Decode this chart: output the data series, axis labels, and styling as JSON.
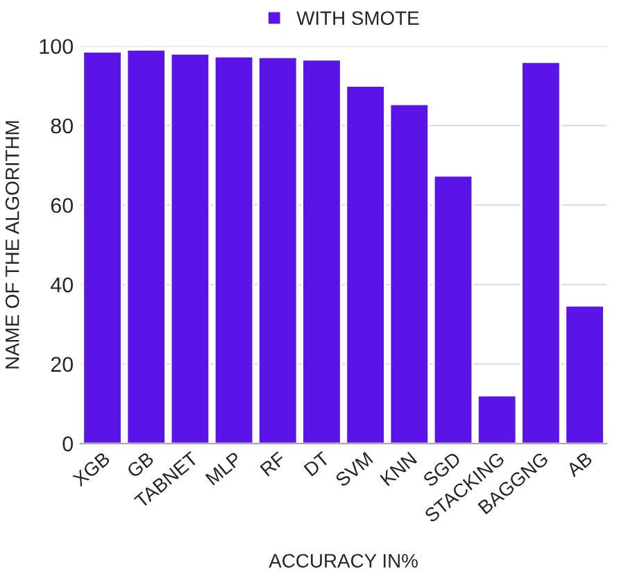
{
  "chart_data": {
    "type": "bar",
    "xlabel": "ACCURACY IN%",
    "ylabel": "NAME OF THE ALGORITHM",
    "categories": [
      "XGB",
      "GB",
      "TABNET",
      "MLP",
      "RF",
      "DT",
      "SVM",
      "KNN",
      "SGD",
      "STACKING",
      "BAGGNG",
      "AB"
    ],
    "series": [
      {
        "name": "WITH SMOTE",
        "color": "#5a14e8",
        "values": [
          98.6,
          99.1,
          98.1,
          97.4,
          97.2,
          96.6,
          90.0,
          85.4,
          67.4,
          12.1,
          96.0,
          34.7
        ]
      }
    ],
    "ylim": [
      0,
      100
    ],
    "yticks": [
      0,
      20,
      40,
      60,
      80,
      100
    ],
    "grid": "y",
    "legend": "top"
  }
}
